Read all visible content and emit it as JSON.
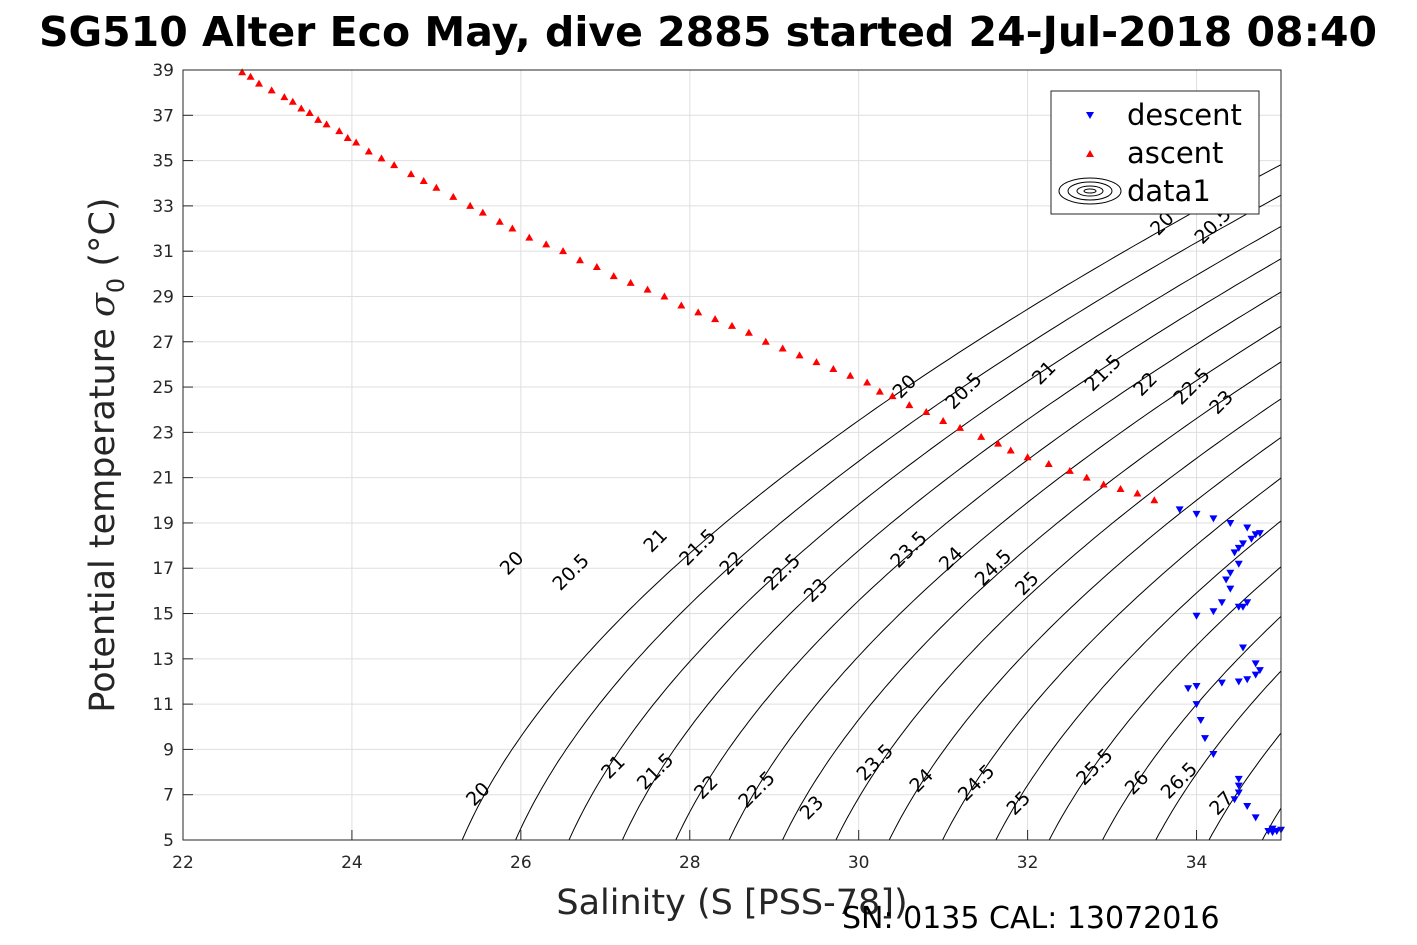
{
  "chart_data": {
    "type": "scatter",
    "title": "SG510 Alter Eco May, dive 2885 started 24-Jul-2018 08:40",
    "xlabel": "Salinity (S [PSS-78])",
    "ylabel_main": "Potential temperature ",
    "ylabel_sigma": "σ",
    "ylabel_sub": "0",
    "ylabel_unit": " (°C)",
    "footer": "SN: 0135  CAL: 13072016",
    "xlim": [
      22,
      35
    ],
    "ylim": [
      5,
      39
    ],
    "x_ticks": [
      22,
      24,
      26,
      28,
      30,
      32,
      34
    ],
    "y_ticks": [
      5,
      7,
      9,
      11,
      13,
      15,
      17,
      19,
      21,
      23,
      25,
      27,
      29,
      31,
      33,
      35,
      37,
      39
    ],
    "grid": true,
    "legend_position": "top-right",
    "legend": [
      {
        "label": "descent",
        "marker": "down-triangle",
        "color": "#0000ff"
      },
      {
        "label": "ascent",
        "marker": "up-triangle",
        "color": "#ff0000"
      },
      {
        "label": "data1",
        "marker": "contour",
        "color": "#000000"
      }
    ],
    "series": [
      {
        "name": "descent",
        "color": "#0000ff",
        "marker": "down-triangle",
        "points": [
          [
            33.8,
            19.6
          ],
          [
            34.0,
            19.4
          ],
          [
            34.2,
            19.2
          ],
          [
            34.4,
            19.0
          ],
          [
            34.6,
            18.8
          ],
          [
            34.7,
            18.5
          ],
          [
            34.75,
            18.55
          ],
          [
            34.65,
            18.3
          ],
          [
            34.55,
            18.1
          ],
          [
            34.5,
            17.9
          ],
          [
            34.45,
            17.7
          ],
          [
            34.5,
            17.2
          ],
          [
            34.4,
            16.8
          ],
          [
            34.35,
            16.5
          ],
          [
            34.4,
            16.1
          ],
          [
            34.3,
            15.5
          ],
          [
            34.5,
            15.3
          ],
          [
            34.6,
            15.5
          ],
          [
            34.55,
            15.3
          ],
          [
            34.2,
            15.1
          ],
          [
            34.0,
            14.9
          ],
          [
            34.55,
            13.5
          ],
          [
            34.7,
            12.8
          ],
          [
            34.75,
            12.5
          ],
          [
            34.7,
            12.3
          ],
          [
            34.6,
            12.1
          ],
          [
            34.5,
            12.0
          ],
          [
            34.3,
            11.95
          ],
          [
            34.0,
            11.8
          ],
          [
            33.9,
            11.7
          ],
          [
            34.0,
            11.0
          ],
          [
            34.05,
            10.3
          ],
          [
            34.1,
            9.5
          ],
          [
            34.2,
            8.8
          ],
          [
            34.5,
            7.7
          ],
          [
            34.5,
            7.4
          ],
          [
            34.5,
            7.1
          ],
          [
            34.45,
            6.8
          ],
          [
            34.6,
            6.5
          ],
          [
            34.7,
            6.0
          ],
          [
            34.85,
            5.4
          ],
          [
            34.9,
            5.35
          ],
          [
            34.95,
            5.4
          ],
          [
            35.0,
            5.45
          ],
          [
            34.9,
            5.5
          ]
        ]
      },
      {
        "name": "ascent",
        "color": "#ff0000",
        "marker": "up-triangle",
        "points": [
          [
            22.7,
            38.9
          ],
          [
            22.8,
            38.7
          ],
          [
            22.9,
            38.4
          ],
          [
            23.05,
            38.1
          ],
          [
            23.2,
            37.8
          ],
          [
            23.3,
            37.6
          ],
          [
            23.4,
            37.3
          ],
          [
            23.5,
            37.1
          ],
          [
            23.6,
            36.8
          ],
          [
            23.7,
            36.6
          ],
          [
            23.85,
            36.3
          ],
          [
            23.95,
            36.0
          ],
          [
            24.05,
            35.8
          ],
          [
            24.2,
            35.4
          ],
          [
            24.35,
            35.1
          ],
          [
            24.5,
            34.8
          ],
          [
            24.7,
            34.4
          ],
          [
            24.85,
            34.1
          ],
          [
            25.0,
            33.8
          ],
          [
            25.2,
            33.4
          ],
          [
            25.4,
            33.0
          ],
          [
            25.55,
            32.7
          ],
          [
            25.75,
            32.3
          ],
          [
            25.9,
            32.0
          ],
          [
            26.1,
            31.6
          ],
          [
            26.3,
            31.3
          ],
          [
            26.5,
            31.0
          ],
          [
            26.7,
            30.6
          ],
          [
            26.9,
            30.3
          ],
          [
            27.1,
            29.9
          ],
          [
            27.3,
            29.6
          ],
          [
            27.5,
            29.3
          ],
          [
            27.7,
            29.0
          ],
          [
            27.9,
            28.6
          ],
          [
            28.1,
            28.3
          ],
          [
            28.3,
            28.0
          ],
          [
            28.5,
            27.7
          ],
          [
            28.7,
            27.4
          ],
          [
            28.9,
            27.0
          ],
          [
            29.1,
            26.7
          ],
          [
            29.3,
            26.4
          ],
          [
            29.5,
            26.1
          ],
          [
            29.7,
            25.8
          ],
          [
            29.9,
            25.5
          ],
          [
            30.1,
            25.2
          ],
          [
            30.25,
            24.8
          ],
          [
            30.4,
            24.6
          ],
          [
            30.6,
            24.2
          ],
          [
            30.8,
            23.9
          ],
          [
            31.0,
            23.5
          ],
          [
            31.2,
            23.2
          ],
          [
            31.45,
            22.8
          ],
          [
            31.65,
            22.5
          ],
          [
            31.8,
            22.2
          ],
          [
            32.0,
            21.9
          ],
          [
            32.25,
            21.6
          ],
          [
            32.5,
            21.3
          ],
          [
            32.7,
            21.0
          ],
          [
            32.9,
            20.7
          ],
          [
            33.1,
            20.5
          ],
          [
            33.3,
            20.3
          ],
          [
            33.5,
            20.0
          ]
        ]
      }
    ],
    "contours": {
      "name": "data1",
      "color": "#000000",
      "levels": [
        20,
        20.5,
        21,
        21.5,
        22,
        22.5,
        23,
        23.5,
        24,
        24.5,
        25,
        25.5,
        26,
        26.5,
        27,
        27.5
      ],
      "labels_row_upper": [
        {
          "text": "20",
          "x": 30.55,
          "y": 25.0
        },
        {
          "text": "20.5",
          "x": 31.25,
          "y": 24.8
        },
        {
          "text": "21",
          "x": 32.2,
          "y": 25.6
        },
        {
          "text": "21.5",
          "x": 32.9,
          "y": 25.6
        },
        {
          "text": "22",
          "x": 33.4,
          "y": 25.1
        },
        {
          "text": "22.5",
          "x": 33.95,
          "y": 25.0
        },
        {
          "text": "23",
          "x": 34.3,
          "y": 24.3
        }
      ],
      "labels_top": [
        {
          "text": "20",
          "x": 33.6,
          "y": 32.2
        },
        {
          "text": "20.5",
          "x": 34.2,
          "y": 32.1
        }
      ],
      "labels_middle": [
        {
          "text": "20",
          "x": 25.9,
          "y": 17.2
        },
        {
          "text": "20.5",
          "x": 26.6,
          "y": 16.8
        },
        {
          "text": "21",
          "x": 27.6,
          "y": 18.2
        },
        {
          "text": "21.5",
          "x": 28.1,
          "y": 17.9
        },
        {
          "text": "22",
          "x": 28.5,
          "y": 17.2
        },
        {
          "text": "22.5",
          "x": 29.1,
          "y": 16.8
        },
        {
          "text": "23",
          "x": 29.5,
          "y": 16.0
        },
        {
          "text": "23.5",
          "x": 30.6,
          "y": 17.8
        },
        {
          "text": "24",
          "x": 31.1,
          "y": 17.4
        },
        {
          "text": "24.5",
          "x": 31.6,
          "y": 17.0
        },
        {
          "text": "25",
          "x": 32.0,
          "y": 16.3
        }
      ],
      "labels_bottom": [
        {
          "text": "20",
          "x": 25.5,
          "y": 7.0
        },
        {
          "text": "21",
          "x": 27.1,
          "y": 8.2
        },
        {
          "text": "21.5",
          "x": 27.6,
          "y": 8.0
        },
        {
          "text": "22",
          "x": 28.2,
          "y": 7.3
        },
        {
          "text": "22.5",
          "x": 28.8,
          "y": 7.2
        },
        {
          "text": "23",
          "x": 29.45,
          "y": 6.4
        },
        {
          "text": "23.5",
          "x": 30.2,
          "y": 8.4
        },
        {
          "text": "24",
          "x": 30.75,
          "y": 7.6
        },
        {
          "text": "24.5",
          "x": 31.4,
          "y": 7.5
        },
        {
          "text": "25",
          "x": 31.9,
          "y": 6.6
        },
        {
          "text": "25.5",
          "x": 32.8,
          "y": 8.2
        },
        {
          "text": "26",
          "x": 33.3,
          "y": 7.5
        },
        {
          "text": "26.5",
          "x": 33.8,
          "y": 7.6
        },
        {
          "text": "27",
          "x": 34.3,
          "y": 6.6
        }
      ]
    }
  }
}
